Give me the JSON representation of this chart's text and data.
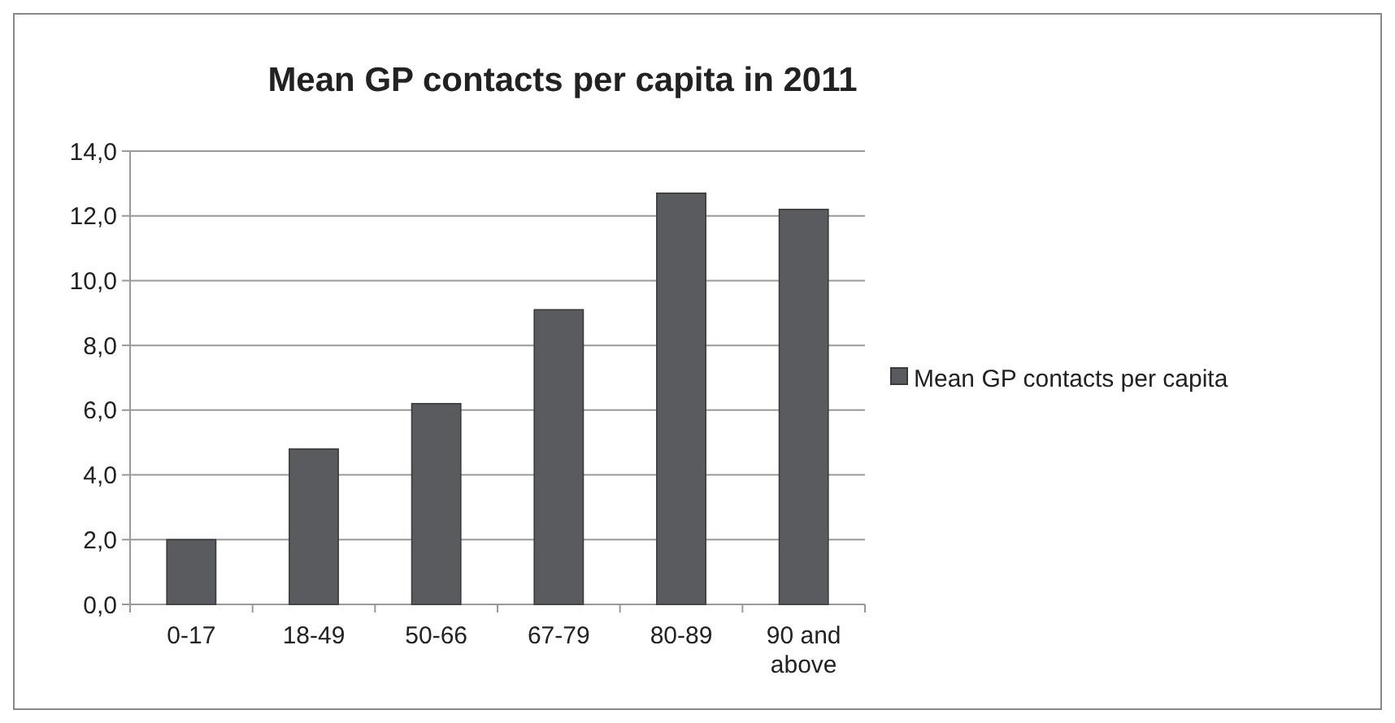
{
  "chart_data": {
    "type": "bar",
    "title": "Mean GP contacts per capita in 2011",
    "categories": [
      "0-17",
      "18-49",
      "50-66",
      "67-79",
      "80-89",
      "90 and above"
    ],
    "series": [
      {
        "name": "Mean GP contacts per capita",
        "color": "#5a5b5e",
        "values": [
          2.0,
          4.8,
          6.2,
          9.1,
          12.7,
          12.2
        ]
      }
    ],
    "ylim": [
      0,
      14
    ],
    "yticks": [
      {
        "value": 0,
        "label": "0,0"
      },
      {
        "value": 2,
        "label": "2,0"
      },
      {
        "value": 4,
        "label": "4,0"
      },
      {
        "value": 6,
        "label": "6,0"
      },
      {
        "value": 8,
        "label": "8,0"
      },
      {
        "value": 10,
        "label": "10,0"
      },
      {
        "value": 12,
        "label": "12,0"
      },
      {
        "value": 14,
        "label": "14,0"
      }
    ],
    "grid": "y",
    "legend": "right"
  }
}
